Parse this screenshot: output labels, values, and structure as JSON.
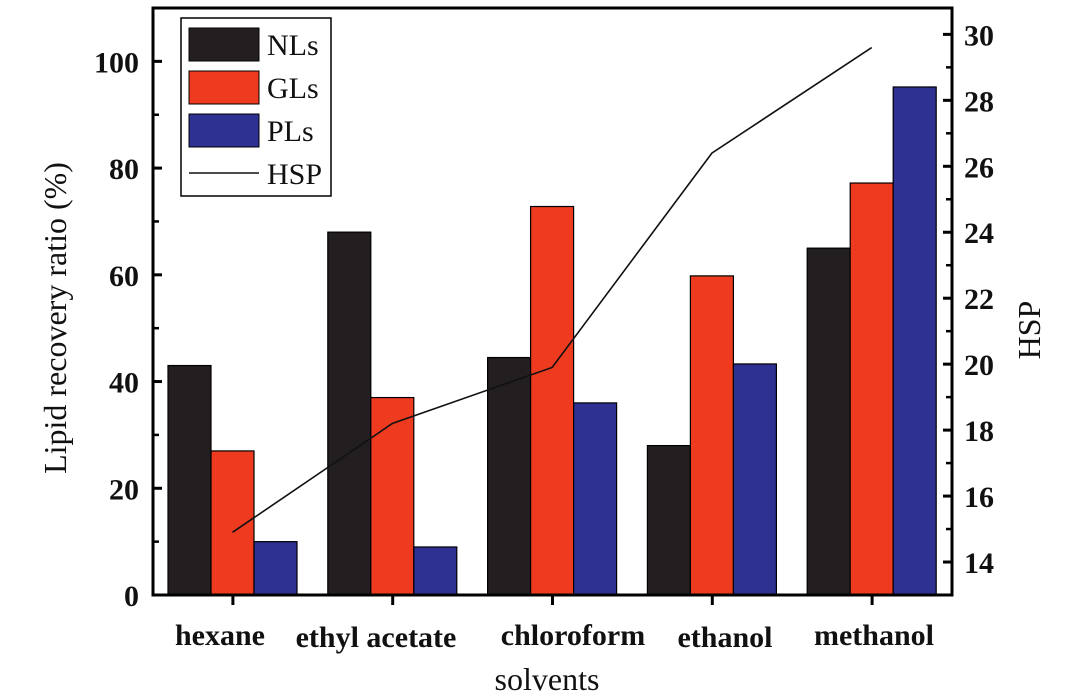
{
  "chart_data": {
    "type": "bar",
    "categories": [
      "hexane",
      "ethyl acetate",
      "chloroform",
      "ethanol",
      "methanol"
    ],
    "series": [
      {
        "name": "NLs",
        "color": "#231f20",
        "values": [
          43,
          68,
          44.5,
          28,
          65
        ]
      },
      {
        "name": "GLs",
        "color": "#ee3a1f",
        "values": [
          27,
          37,
          72.8,
          59.8,
          77.2
        ]
      },
      {
        "name": "PLs",
        "color": "#2e3192",
        "values": [
          10,
          9,
          36,
          43.3,
          95.2
        ]
      }
    ],
    "line_series": {
      "name": "HSP",
      "color": "#111111",
      "axis": "right",
      "values": [
        14.9,
        18.2,
        19.9,
        26.4,
        29.6
      ]
    },
    "xlabel": "solvents",
    "ylabel": "Lipid recovery ratio (%)",
    "y2label": "HSP",
    "ylim": [
      0,
      110
    ],
    "y2lim": [
      13,
      30.8
    ],
    "yticks": [
      0,
      20,
      40,
      60,
      80,
      100
    ],
    "yticks_minor": [
      10,
      30,
      50,
      70,
      90
    ],
    "y2ticks": [
      14,
      16,
      18,
      20,
      22,
      24,
      26,
      28,
      30
    ],
    "legend_position": "top-left",
    "legend_entries": [
      "NLs",
      "GLs",
      "PLs",
      "HSP"
    ],
    "grid": false
  }
}
